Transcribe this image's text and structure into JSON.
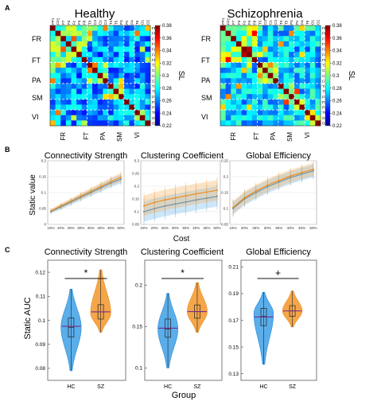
{
  "panel_labels": [
    "A",
    "B",
    "C"
  ],
  "channels": [
    "FP1",
    "FP2",
    "F7",
    "F3",
    "Fz",
    "F4",
    "F8",
    "T3",
    "C3",
    "Cz",
    "C4",
    "T4",
    "T5",
    "P3",
    "Pz",
    "P4",
    "T6",
    "O1",
    "O2"
  ],
  "colors": {
    "hc": "#2b8ad8",
    "hc_fill": "#5aaeea",
    "sz": "#ee8a14",
    "sz_fill": "#f5a64a",
    "mean_line": "#7a2a8a",
    "grid": "#e3e3e3",
    "axis": "#555555"
  },
  "chart_data": [
    {
      "type": "heatmap",
      "title": "Healthy",
      "row_groups": [
        "FR",
        "FT",
        "PA",
        "SM",
        "VI"
      ],
      "col_groups": [
        "FR",
        "FT",
        "PA",
        "SM",
        "VI"
      ],
      "colorbar": {
        "label": "SL",
        "range": [
          0.22,
          0.38
        ],
        "ticks": [
          0.38,
          0.36,
          0.34,
          0.32,
          0.3,
          0.28,
          0.26,
          0.24,
          0.22
        ]
      }
    },
    {
      "type": "heatmap",
      "title": "Schizophrenia",
      "row_groups": [
        "FR",
        "FT",
        "PA",
        "SM",
        "VI"
      ],
      "col_groups": [
        "FR",
        "FT",
        "PA",
        "SM",
        "VI"
      ],
      "colorbar": {
        "label": "SL",
        "range": [
          0.22,
          0.38
        ],
        "ticks": [
          0.38,
          0.36,
          0.34,
          0.32,
          0.3,
          0.28,
          0.26,
          0.24,
          0.22
        ]
      }
    },
    {
      "type": "line",
      "title": "Connectivity Strength",
      "ylabel": "Static value",
      "xlabel": "",
      "x": [
        "15%",
        "20%",
        "25%",
        "30%",
        "35%",
        "40%",
        "45%",
        "50%"
      ],
      "ylim": [
        0,
        0.2
      ],
      "yticks": [
        "0",
        "0.05",
        "0.1",
        "0.15",
        "0.2"
      ],
      "annotation": "",
      "series": [
        {
          "group": "hc",
          "values": [
            0.04,
            0.055,
            0.07,
            0.085,
            0.1,
            0.115,
            0.13,
            0.142
          ],
          "spread": [
            0.006,
            0.008,
            0.009,
            0.01,
            0.011,
            0.012,
            0.013,
            0.014
          ]
        },
        {
          "group": "sz",
          "values": [
            0.042,
            0.058,
            0.073,
            0.089,
            0.104,
            0.119,
            0.134,
            0.148
          ],
          "spread": [
            0.006,
            0.008,
            0.009,
            0.01,
            0.011,
            0.012,
            0.013,
            0.014
          ]
        }
      ]
    },
    {
      "type": "line",
      "title": "Clustering Coefficient",
      "ylabel": "",
      "xlabel": "Cost",
      "x": [
        "15%",
        "20%",
        "25%",
        "30%",
        "35%",
        "40%",
        "45%",
        "50%"
      ],
      "ylim": [
        0.05,
        0.3
      ],
      "yticks": [
        "0.05",
        "0.1",
        "0.15",
        "0.2",
        "0.25",
        "0.3"
      ],
      "annotation": "*",
      "series": [
        {
          "group": "hc",
          "values": [
            0.1,
            0.112,
            0.122,
            0.13,
            0.138,
            0.146,
            0.153,
            0.16
          ],
          "spread": [
            0.04,
            0.04,
            0.04,
            0.04,
            0.04,
            0.04,
            0.04,
            0.04
          ]
        },
        {
          "group": "sz",
          "values": [
            0.123,
            0.136,
            0.146,
            0.154,
            0.162,
            0.17,
            0.177,
            0.184
          ],
          "spread": [
            0.04,
            0.04,
            0.04,
            0.04,
            0.04,
            0.04,
            0.04,
            0.04
          ]
        }
      ]
    },
    {
      "type": "line",
      "title": "Global Efficiency",
      "ylabel": "",
      "xlabel": "",
      "x": [
        "15%",
        "20%",
        "25%",
        "30%",
        "35%",
        "40%",
        "45%",
        "50%"
      ],
      "ylim": [
        0.05,
        0.25
      ],
      "yticks": [
        "0.05",
        "0.1",
        "0.15",
        "0.2",
        "0.25"
      ],
      "annotation": "",
      "series": [
        {
          "group": "hc",
          "values": [
            0.1,
            0.13,
            0.15,
            0.168,
            0.183,
            0.197,
            0.208,
            0.218
          ],
          "spread": [
            0.02,
            0.02,
            0.02,
            0.02,
            0.02,
            0.02,
            0.02,
            0.02
          ]
        },
        {
          "group": "sz",
          "values": [
            0.103,
            0.134,
            0.155,
            0.173,
            0.188,
            0.202,
            0.213,
            0.223
          ],
          "spread": [
            0.02,
            0.02,
            0.02,
            0.02,
            0.02,
            0.02,
            0.02,
            0.02
          ]
        }
      ]
    },
    {
      "type": "violin",
      "title": "Connectivity Strength",
      "ylabel": "Static AUC",
      "xlabel": "",
      "categories": [
        "HC",
        "SZ"
      ],
      "ylim": [
        0.075,
        0.125
      ],
      "yticks": [
        "0.08",
        "0.09",
        "0.1",
        "0.11",
        "0.12"
      ],
      "significance": "*",
      "groups": [
        {
          "name": "HC",
          "min": 0.079,
          "q1": 0.093,
          "median": 0.097,
          "q3": 0.101,
          "max": 0.113,
          "mean": 0.0975,
          "peak": 0.097
        },
        {
          "name": "SZ",
          "min": 0.095,
          "q1": 0.1005,
          "median": 0.1035,
          "q3": 0.1065,
          "max": 0.121,
          "mean": 0.1035,
          "peak": 0.103
        }
      ]
    },
    {
      "type": "violin",
      "title": "Clustering Coefficient",
      "ylabel": "",
      "xlabel": "Group",
      "categories": [
        "HC",
        "SZ"
      ],
      "ylim": [
        0.085,
        0.23
      ],
      "yticks": [
        "0.1",
        "0.15",
        "0.2"
      ],
      "significance": "*",
      "groups": [
        {
          "name": "HC",
          "min": 0.1,
          "q1": 0.137,
          "median": 0.147,
          "q3": 0.159,
          "max": 0.19,
          "mean": 0.148,
          "peak": 0.147
        },
        {
          "name": "SZ",
          "min": 0.143,
          "q1": 0.16,
          "median": 0.168,
          "q3": 0.176,
          "max": 0.203,
          "mean": 0.168,
          "peak": 0.168
        }
      ]
    },
    {
      "type": "violin",
      "title": "Global Efficiency",
      "ylabel": "",
      "xlabel": "",
      "categories": [
        "HC",
        "SZ"
      ],
      "ylim": [
        0.125,
        0.215
      ],
      "yticks": [
        "0.13",
        "0.15",
        "0.17",
        "0.19",
        "0.21"
      ],
      "significance": "+",
      "groups": [
        {
          "name": "HC",
          "min": 0.137,
          "q1": 0.166,
          "median": 0.173,
          "q3": 0.179,
          "max": 0.191,
          "mean": 0.1725,
          "peak": 0.175
        },
        {
          "name": "SZ",
          "min": 0.165,
          "q1": 0.173,
          "median": 0.177,
          "q3": 0.181,
          "max": 0.192,
          "mean": 0.177,
          "peak": 0.177
        }
      ]
    }
  ]
}
